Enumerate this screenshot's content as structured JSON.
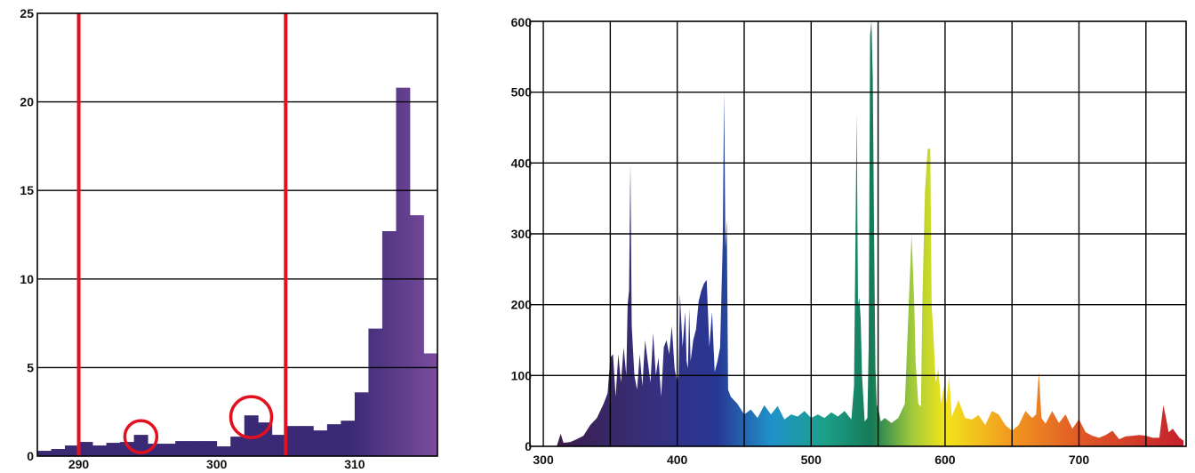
{
  "chart_data": [
    {
      "type": "bar",
      "title": "",
      "xlabel": "",
      "ylabel": "",
      "xlim": [
        287,
        316
      ],
      "ylim": [
        0,
        25
      ],
      "grid": "horizontal",
      "xticks": [
        290,
        300,
        310
      ],
      "yticks": [
        0,
        5,
        10,
        15,
        20,
        25
      ],
      "bar_width": 1,
      "bar_starts": [
        287,
        288,
        289,
        290,
        291,
        292,
        293,
        294,
        295,
        296,
        297,
        298,
        299,
        300,
        301,
        302,
        303,
        304,
        305,
        306,
        307,
        308,
        309,
        310,
        311,
        312,
        313,
        314,
        315
      ],
      "values": [
        0.3,
        0.4,
        0.6,
        0.8,
        0.6,
        0.75,
        0.8,
        1.2,
        0.7,
        0.7,
        0.85,
        0.85,
        0.85,
        0.55,
        1.1,
        2.3,
        1.9,
        1.2,
        1.7,
        1.7,
        1.45,
        1.8,
        2.0,
        3.6,
        7.2,
        12.7,
        20.8,
        13.6,
        5.8
      ],
      "reference_lines_x": [
        290,
        305
      ],
      "reference_line_color": "#e3101f",
      "circled_bars_x": [
        294,
        302
      ],
      "color_start": "#3a2a76",
      "color_end": "#7a4c9c",
      "grid_color": "#000000"
    },
    {
      "type": "area",
      "title": "",
      "xlabel": "",
      "ylabel": "",
      "xlim": [
        290,
        780
      ],
      "ylim": [
        0,
        600
      ],
      "grid": "both",
      "xticks": [
        300,
        400,
        500,
        600,
        700
      ],
      "xgrid": [
        300,
        350,
        400,
        450,
        500,
        550,
        600,
        650,
        700,
        750
      ],
      "yticks": [
        0,
        100,
        200,
        300,
        400,
        500,
        600
      ],
      "x": [
        310,
        313,
        315,
        320,
        325,
        330,
        335,
        340,
        345,
        348,
        350,
        352,
        354,
        356,
        358,
        360,
        362,
        363,
        364,
        365,
        366,
        368,
        370,
        372,
        374,
        376,
        378,
        380,
        382,
        384,
        386,
        388,
        390,
        392,
        394,
        396,
        398,
        400,
        401,
        402,
        404,
        406,
        407,
        408,
        409,
        410,
        412,
        414,
        416,
        418,
        420,
        422,
        424,
        426,
        428,
        430,
        432,
        434,
        435,
        436,
        437,
        438,
        440,
        445,
        450,
        455,
        460,
        465,
        470,
        475,
        480,
        485,
        490,
        495,
        500,
        505,
        510,
        515,
        520,
        525,
        530,
        532,
        534,
        535,
        536,
        537,
        538,
        540,
        542,
        543,
        544,
        545,
        546,
        547,
        548,
        549,
        550,
        552,
        555,
        560,
        565,
        570,
        575,
        577,
        578,
        580,
        582,
        583,
        585,
        587,
        589,
        590,
        591,
        593,
        595,
        597,
        599,
        601,
        603,
        605,
        610,
        615,
        620,
        625,
        630,
        635,
        640,
        645,
        650,
        655,
        660,
        665,
        668,
        670,
        672,
        675,
        680,
        685,
        690,
        695,
        700,
        705,
        710,
        715,
        720,
        725,
        730,
        735,
        740,
        745,
        750,
        755,
        760,
        763,
        765,
        767,
        770,
        775,
        778
      ],
      "y": [
        0,
        18,
        5,
        6,
        10,
        15,
        30,
        40,
        60,
        75,
        125,
        130,
        70,
        130,
        90,
        140,
        100,
        200,
        220,
        400,
        170,
        100,
        80,
        130,
        85,
        150,
        120,
        90,
        160,
        100,
        125,
        70,
        140,
        150,
        130,
        170,
        110,
        90,
        100,
        215,
        140,
        190,
        120,
        110,
        195,
        120,
        150,
        165,
        205,
        220,
        230,
        235,
        140,
        190,
        105,
        120,
        140,
        290,
        500,
        280,
        320,
        80,
        70,
        60,
        45,
        52,
        40,
        58,
        45,
        57,
        38,
        45,
        42,
        50,
        40,
        45,
        40,
        48,
        42,
        50,
        38,
        85,
        470,
        200,
        210,
        180,
        100,
        35,
        40,
        140,
        580,
        600,
        520,
        300,
        110,
        58,
        55,
        35,
        40,
        33,
        40,
        60,
        300,
        200,
        120,
        60,
        56,
        200,
        360,
        420,
        420,
        200,
        170,
        90,
        110,
        60,
        85,
        62,
        100,
        42,
        65,
        40,
        38,
        44,
        30,
        50,
        45,
        30,
        22,
        30,
        50,
        40,
        45,
        105,
        40,
        32,
        50,
        33,
        45,
        25,
        38,
        20,
        15,
        12,
        16,
        22,
        10,
        14,
        15,
        16,
        15,
        12,
        12,
        58,
        40,
        20,
        25,
        12,
        8
      ],
      "gradient_stops": [
        {
          "x": 310,
          "color": "#3b1d4a"
        },
        {
          "x": 380,
          "color": "#372f7c"
        },
        {
          "x": 430,
          "color": "#283896"
        },
        {
          "x": 470,
          "color": "#1f92ca"
        },
        {
          "x": 510,
          "color": "#1ca08a"
        },
        {
          "x": 545,
          "color": "#157a57"
        },
        {
          "x": 575,
          "color": "#9fc93c"
        },
        {
          "x": 600,
          "color": "#f2e51b"
        },
        {
          "x": 650,
          "color": "#f29720"
        },
        {
          "x": 700,
          "color": "#e05a26"
        },
        {
          "x": 778,
          "color": "#c4202c"
        }
      ],
      "grid_color": "#000000"
    }
  ]
}
